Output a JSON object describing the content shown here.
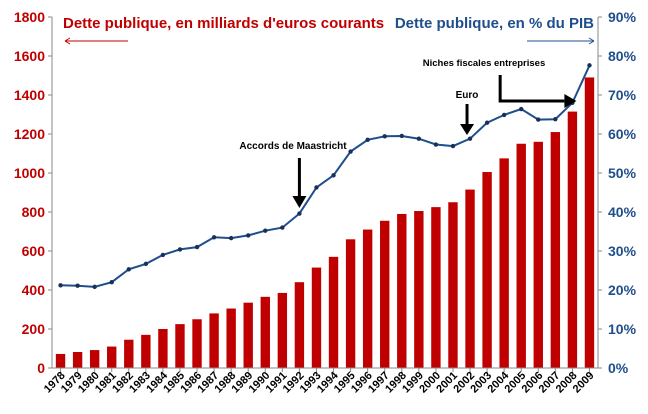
{
  "chart_data": {
    "type": "bar+line",
    "categories": [
      "1978",
      "1979",
      "1980",
      "1981",
      "1982",
      "1983",
      "1984",
      "1985",
      "1986",
      "1987",
      "1988",
      "1989",
      "1990",
      "1991",
      "1992",
      "1993",
      "1994",
      "1995",
      "1996",
      "1997",
      "1998",
      "1999",
      "2000",
      "2001",
      "2002",
      "2003",
      "2004",
      "2005",
      "2006",
      "2007",
      "2008",
      "2009"
    ],
    "series": [
      {
        "name": "Dette publique, en milliards d'euros courants",
        "type": "bar",
        "axis": "left",
        "color": "#C00000",
        "values": [
          72,
          82,
          92,
          110,
          145,
          170,
          200,
          225,
          250,
          280,
          305,
          335,
          365,
          385,
          440,
          515,
          570,
          660,
          710,
          755,
          790,
          805,
          825,
          850,
          915,
          1005,
          1075,
          1150,
          1160,
          1210,
          1315,
          1490
        ]
      },
      {
        "name": "Dette publique, en % du PIB",
        "type": "line",
        "axis": "right",
        "color": "#1F4E8C",
        "values": [
          21.2,
          21.1,
          20.8,
          22.0,
          25.3,
          26.7,
          29.0,
          30.4,
          31.0,
          33.5,
          33.3,
          34.0,
          35.2,
          36.0,
          39.6,
          46.3,
          49.4,
          55.5,
          58.5,
          59.4,
          59.5,
          58.8,
          57.3,
          56.9,
          58.8,
          62.9,
          64.9,
          66.4,
          63.7,
          63.8,
          68.0,
          77.6
        ]
      }
    ],
    "y_left": {
      "ylim": [
        0,
        1800
      ],
      "ticks": [
        "0",
        "200",
        "400",
        "600",
        "800",
        "1000",
        "1200",
        "1400",
        "1600",
        "1800"
      ]
    },
    "y_right": {
      "ylim": [
        0,
        90
      ],
      "ticks": [
        "0%",
        "10%",
        "20%",
        "30%",
        "40%",
        "50%",
        "60%",
        "70%",
        "80%",
        "90%"
      ]
    },
    "grid": false,
    "legend": [
      {
        "text": "Dette publique, en milliards d'euros courants",
        "position": "top-left",
        "color": "#C00000"
      },
      {
        "text": "Dette publique, en % du PIB",
        "position": "top-right",
        "color": "#1F4E8C"
      }
    ],
    "annotations": [
      {
        "text": "Accords de Maastricht",
        "category": "1992"
      },
      {
        "text": "Euro",
        "category": "2002"
      },
      {
        "text": "Niches fiscales entreprises",
        "categories": [
          "2004",
          "2008"
        ]
      }
    ]
  }
}
